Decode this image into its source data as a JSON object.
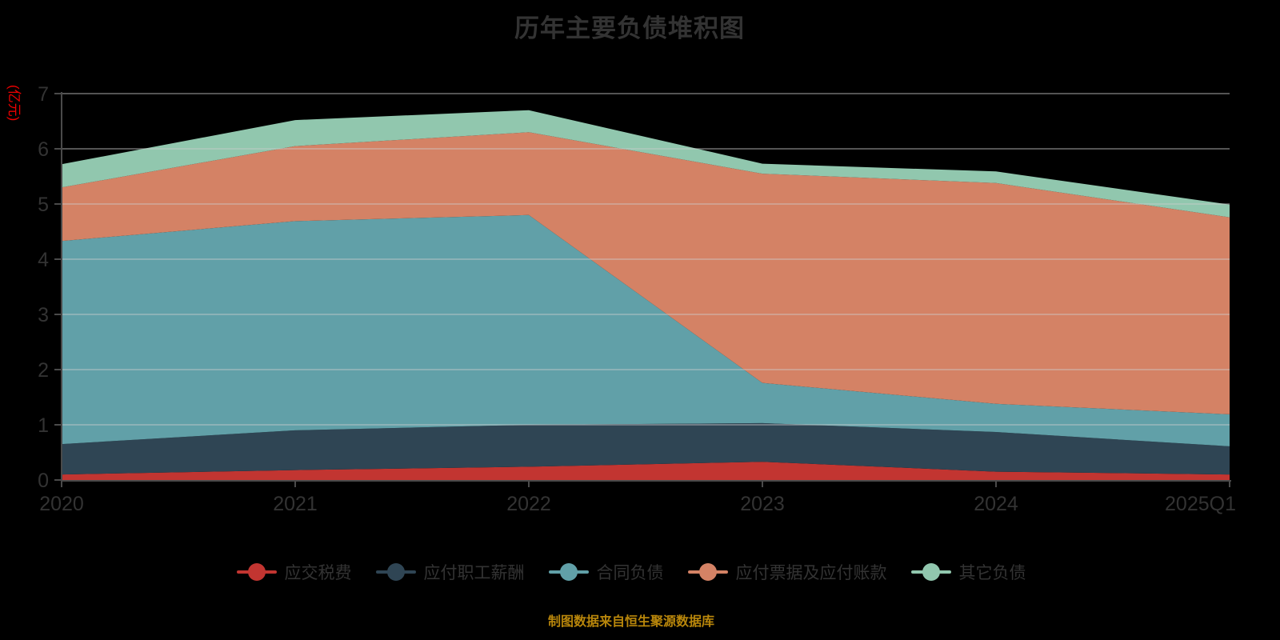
{
  "title": "历年主要负债堆积图",
  "source_note": "制图数据来自恒生聚源数据库",
  "styles": {
    "background": "#000000",
    "title_color": "#333333",
    "label_color": "#333333",
    "axis_color": "#4a4a4a",
    "grid_color": "#cccccc",
    "y_axis_name_color": "#ee0000",
    "source_note_color": "#b8860b"
  },
  "chart_data": {
    "type": "area",
    "stacked": true,
    "title": "历年主要负债堆积图",
    "xlabel": "",
    "ylabel": "(亿元)",
    "ylim": [
      0,
      7
    ],
    "y_ticks": [
      0,
      1,
      2,
      3,
      4,
      5,
      6,
      7
    ],
    "grid": true,
    "legend_position": "bottom",
    "categories": [
      "2020",
      "2021",
      "2022",
      "2023",
      "2024",
      "2025Q1"
    ],
    "series": [
      {
        "name": "应交税费",
        "color": "#c23531",
        "values": [
          0.1,
          0.18,
          0.24,
          0.33,
          0.15,
          0.1
        ]
      },
      {
        "name": "应付职工薪酬",
        "color": "#2f4554",
        "values": [
          0.55,
          0.72,
          0.76,
          0.7,
          0.72,
          0.51
        ]
      },
      {
        "name": "合同负债",
        "color": "#61a0a8",
        "values": [
          3.68,
          3.79,
          3.8,
          0.73,
          0.51,
          0.58
        ]
      },
      {
        "name": "应付票据及应付账款",
        "color": "#d48265",
        "values": [
          0.97,
          1.36,
          1.5,
          3.79,
          4.0,
          3.57
        ]
      },
      {
        "name": "其它负债",
        "color": "#91c7ae",
        "values": [
          0.42,
          0.47,
          0.4,
          0.18,
          0.21,
          0.23
        ]
      }
    ],
    "stack_totals": [
      5.72,
      6.52,
      6.7,
      5.73,
      5.59,
      4.99
    ]
  }
}
